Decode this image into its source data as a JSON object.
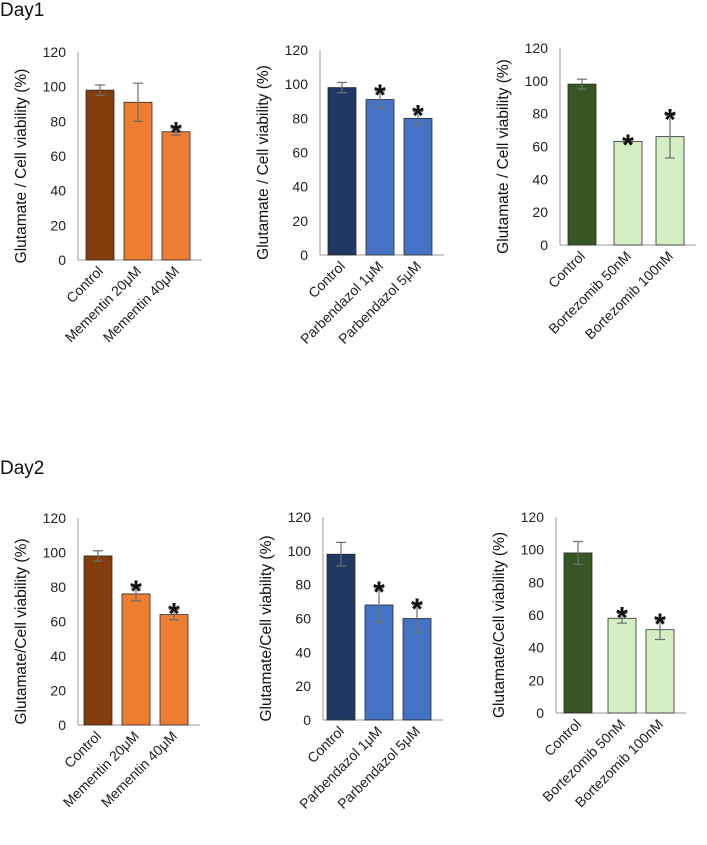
{
  "day1_title": "Day1",
  "day2_title": "Day2",
  "chart_data": [
    {
      "type": "bar",
      "panel": "day1-mementin",
      "ylabel": "Glutamate / Cell viability (%)",
      "ylim": [
        0,
        120
      ],
      "yticks": [
        0,
        20,
        40,
        60,
        80,
        100,
        120
      ],
      "categories": [
        "Control",
        "Mementin 20μM",
        "Mementin 40μM"
      ],
      "values": [
        98,
        91,
        74
      ],
      "errors": [
        3,
        11,
        2
      ],
      "significant": [
        false,
        false,
        true
      ],
      "sig_label": "*",
      "colors": [
        "#843C0C",
        "#ED7D31",
        "#ED7D31"
      ]
    },
    {
      "type": "bar",
      "panel": "day1-parbendazol",
      "ylabel": "Glutamate / Cell viability (%)",
      "ylim": [
        0,
        120
      ],
      "yticks": [
        0,
        20,
        40,
        60,
        80,
        100,
        120
      ],
      "categories": [
        "Control",
        "Parbendazol 1μM",
        "Parbendazol 5μM"
      ],
      "values": [
        98,
        91,
        80
      ],
      "errors": [
        3,
        5,
        4
      ],
      "significant": [
        false,
        true,
        true
      ],
      "sig_label": "*",
      "colors": [
        "#203864",
        "#4472C4",
        "#4472C4"
      ]
    },
    {
      "type": "bar",
      "panel": "day1-bortezomib",
      "ylabel": "Glutamate / Cell viability (%)",
      "ylim": [
        0,
        120
      ],
      "yticks": [
        0,
        20,
        40,
        60,
        80,
        100,
        120
      ],
      "categories": [
        "Control",
        "Bortezomib 50nM",
        "Bortezomib 100nM"
      ],
      "values": [
        98,
        63,
        66
      ],
      "errors": [
        3,
        0.5,
        13
      ],
      "significant": [
        false,
        true,
        true
      ],
      "sig_label": "*",
      "colors": [
        "#375623",
        "#D5EFC4",
        "#D5EFC4"
      ]
    },
    {
      "type": "bar",
      "panel": "day2-mementin",
      "ylabel": "Glutamate/Cell viability (%)",
      "ylim": [
        0,
        120
      ],
      "yticks": [
        0,
        20,
        40,
        60,
        80,
        100,
        120
      ],
      "categories": [
        "Control",
        "Mementin 20μM",
        "Mementin 40μM"
      ],
      "values": [
        98,
        76,
        64
      ],
      "errors": [
        3,
        4,
        3
      ],
      "significant": [
        false,
        true,
        true
      ],
      "sig_label": "*",
      "colors": [
        "#843C0C",
        "#ED7D31",
        "#ED7D31"
      ]
    },
    {
      "type": "bar",
      "panel": "day2-parbendazol",
      "ylabel": "Glutamate/Cell viability (%)",
      "ylim": [
        0,
        120
      ],
      "yticks": [
        0,
        20,
        40,
        60,
        80,
        100,
        120
      ],
      "categories": [
        "Control",
        "Parbendazol 1μM",
        "Parbendazol 5μM"
      ],
      "values": [
        98,
        68,
        60
      ],
      "errors": [
        7,
        10,
        8
      ],
      "significant": [
        false,
        true,
        true
      ],
      "sig_label": "*",
      "colors": [
        "#203864",
        "#4472C4",
        "#4472C4"
      ]
    },
    {
      "type": "bar",
      "panel": "day2-bortezomib",
      "ylabel": "Glutamate/Cell viability (%)",
      "ylim": [
        0,
        120
      ],
      "yticks": [
        0,
        20,
        40,
        60,
        80,
        100,
        120
      ],
      "categories": [
        "Control",
        "Bortezomib 50nM",
        "Bortezomib 100nM"
      ],
      "values": [
        98,
        58,
        51
      ],
      "errors": [
        7,
        3,
        6
      ],
      "significant": [
        false,
        true,
        true
      ],
      "sig_label": "*",
      "colors": [
        "#375623",
        "#D5EFC4",
        "#D5EFC4"
      ]
    }
  ]
}
